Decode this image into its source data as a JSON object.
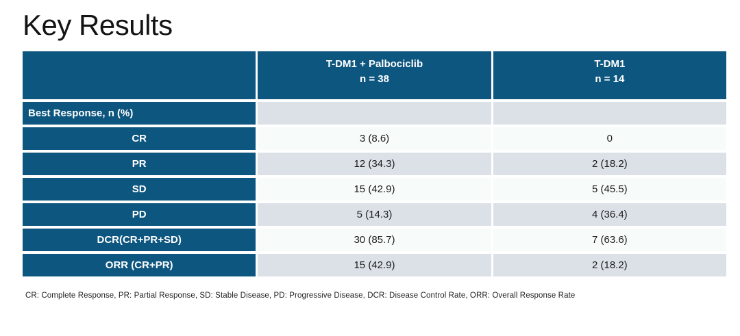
{
  "slide": {
    "title": "Key Results",
    "footnote": "CR: Complete Response, PR: Partial Response, SD: Stable Disease, PD: Progressive Disease, DCR: Disease Control Rate, ORR: Overall Response Rate"
  },
  "table": {
    "columns": [
      {
        "label": "",
        "sub": ""
      },
      {
        "label": "T-DM1 + Palbociclib",
        "sub": "n = 38"
      },
      {
        "label": "T-DM1",
        "sub": "n = 14"
      }
    ],
    "rows": [
      {
        "label": "Best Response, n (%)",
        "values": [
          "",
          ""
        ]
      },
      {
        "label": "CR",
        "values": [
          "3 (8.6)",
          "0"
        ]
      },
      {
        "label": "PR",
        "values": [
          "12 (34.3)",
          "2 (18.2)"
        ]
      },
      {
        "label": "SD",
        "values": [
          "15 (42.9)",
          "5 (45.5)"
        ]
      },
      {
        "label": "PD",
        "values": [
          "5 (14.3)",
          "4 (36.4)"
        ]
      },
      {
        "label": "DCR(CR+PR+SD)",
        "values": [
          "30 (85.7)",
          "7 (63.6)"
        ]
      },
      {
        "label": "ORR (CR+PR)",
        "values": [
          "15 (42.9)",
          "2 (18.2)"
        ]
      }
    ]
  },
  "colors": {
    "header_bg": "#0D567F",
    "row_gray": "#DCE1E8",
    "row_light": "#F7FBF9",
    "title_text": "#141414"
  }
}
